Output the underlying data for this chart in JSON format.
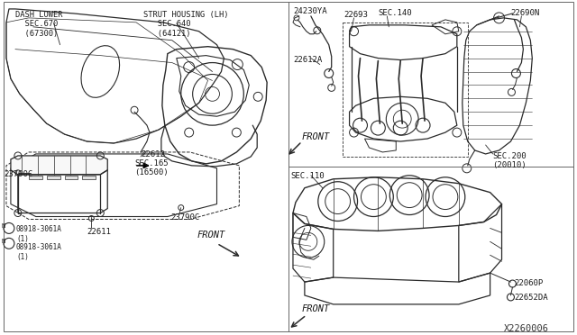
{
  "bg_color": "#f5f5f0",
  "line_color": "#2a2a2a",
  "text_color": "#1a1a1a",
  "diagram_id": "X2260006",
  "labels": {
    "dash_lower": "DASH LOWER\n  SEC.670\n  (67300)",
    "strut_housing": "STRUT HOUSING (LH)\n   SEC.640\n   (64121)",
    "sec165": "SEC.165\n(16500)",
    "part_22612": "22612",
    "part_22612A": "22612A",
    "part_22693": "22693",
    "part_24230YA": "24230YA",
    "sec140": "SEC.140",
    "part_22690N": "22690N",
    "sec200": "SEC.200\n(20010)",
    "sec110": "SEC.110",
    "part_22060P": "22060P",
    "part_22652DA": "22652DA",
    "part_23790C_1": "23790C",
    "part_23790C_2": "23790C",
    "part_22611": "22611",
    "bolt_08918a": "08918-3061A\n(1)",
    "bolt_08918b": "08918-3061A\n(1)",
    "front_left": "FRONT",
    "front_top_right": "FRONT",
    "front_bot_right": "FRONT"
  }
}
